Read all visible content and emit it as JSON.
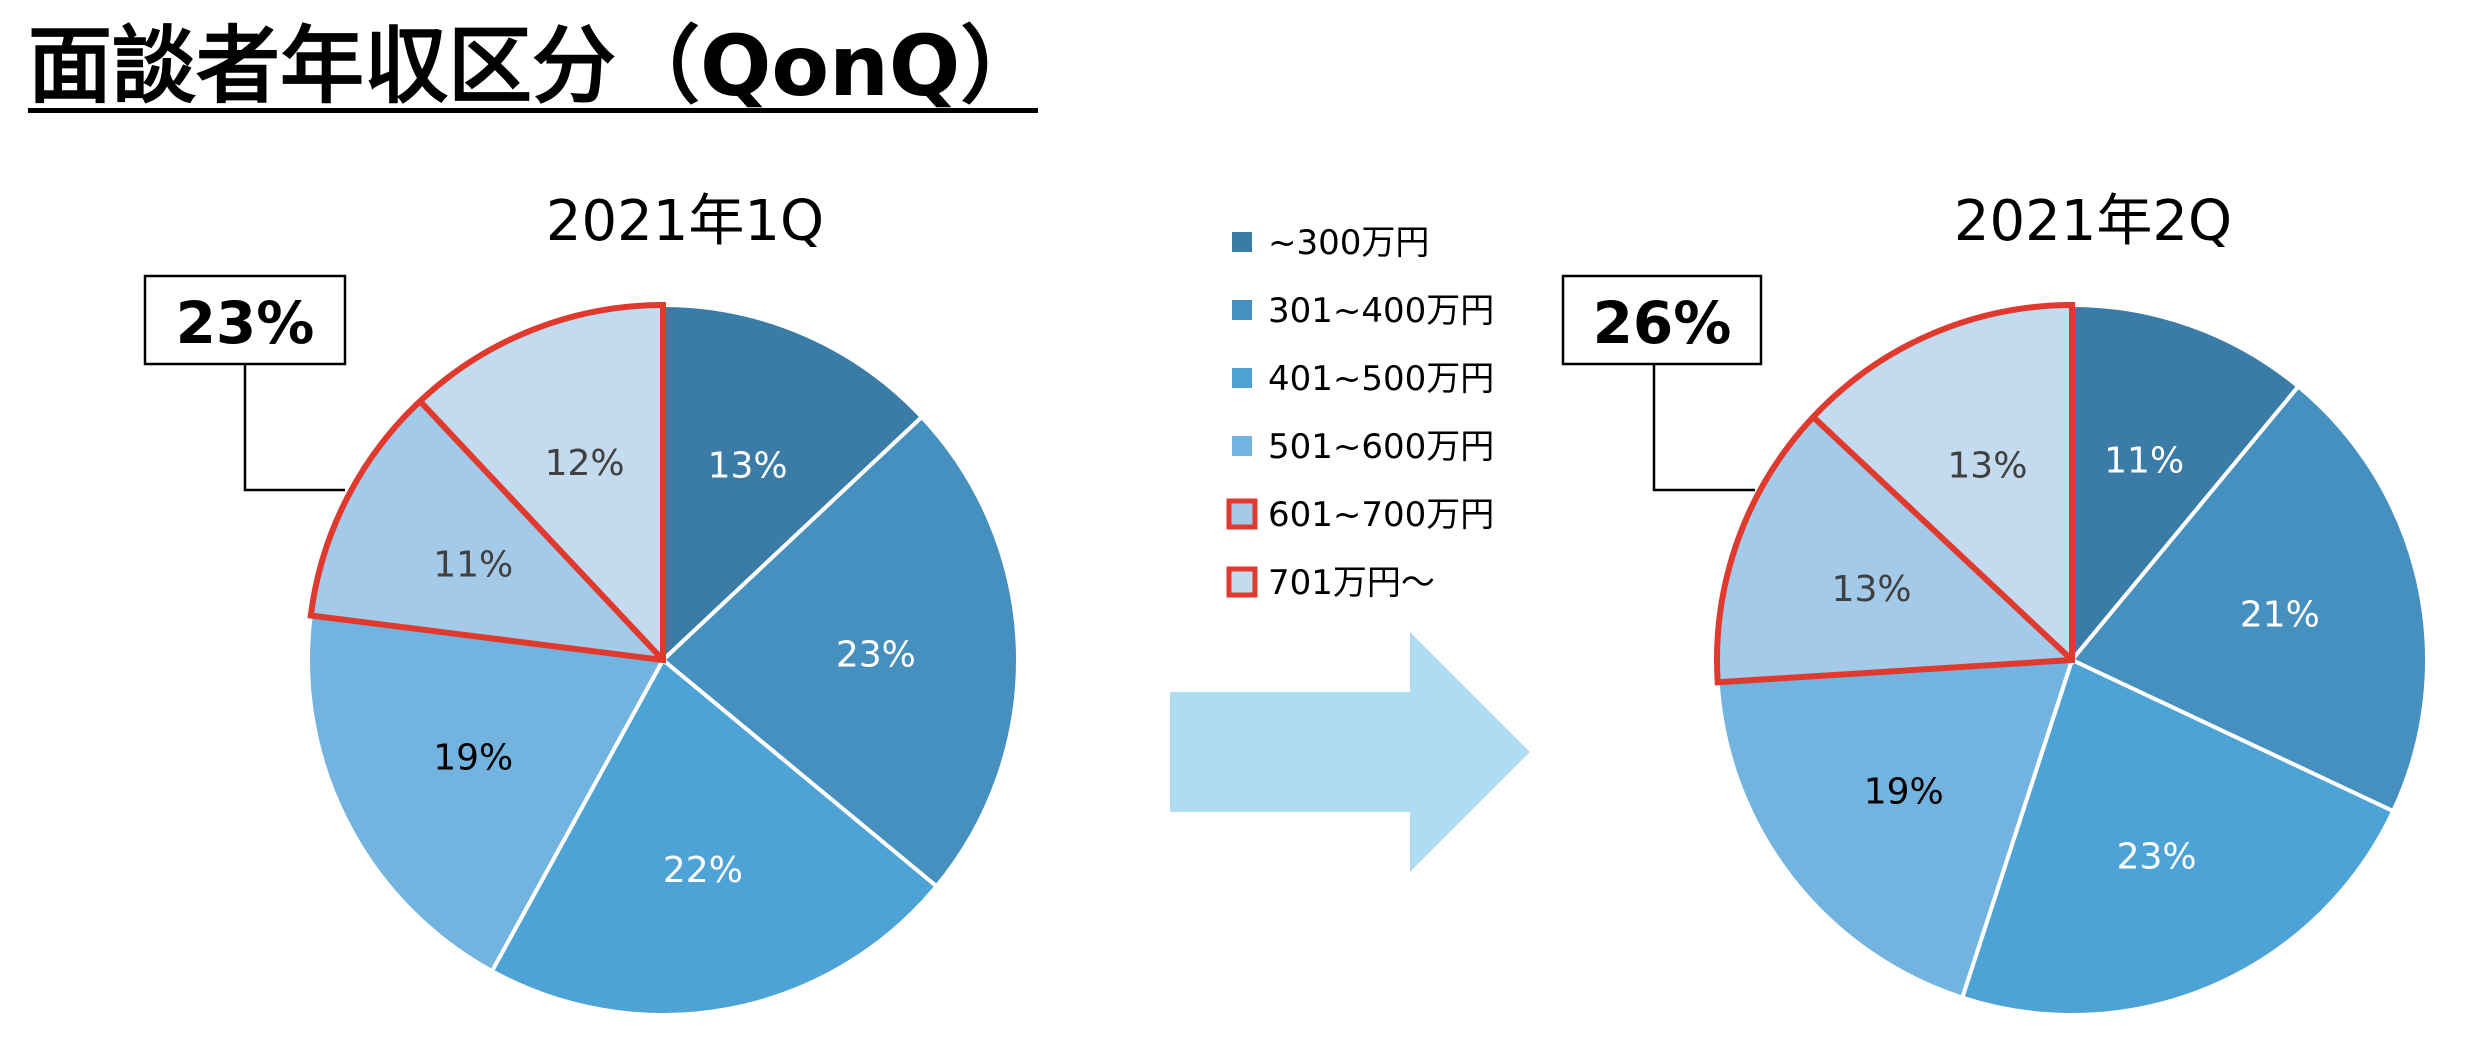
{
  "page": {
    "title": "面談者年収区分（QonQ）"
  },
  "legend": {
    "items": [
      {
        "label": "~300万円",
        "color": "#3A7CA5",
        "highlighted": false
      },
      {
        "label": "301~400万円",
        "color": "#4590BF",
        "highlighted": false
      },
      {
        "label": "401~500万円",
        "color": "#4DA3D6",
        "highlighted": false
      },
      {
        "label": "501~600万円",
        "color": "#72B3DF",
        "highlighted": false
      },
      {
        "label": "601~700万円",
        "color": "#A4CAE9",
        "highlighted": true
      },
      {
        "label": "701万円～",
        "color": "#C4DAEE",
        "highlighted": true
      }
    ]
  },
  "callouts": [
    {
      "text": "23%"
    },
    {
      "text": "26%"
    }
  ],
  "chart_data": [
    {
      "type": "pie",
      "title": "2021年1Q",
      "categories": [
        "~300万円",
        "301~400万円",
        "401~500万円",
        "501~600万円",
        "601~700万円",
        "701万円～"
      ],
      "values": [
        13,
        23,
        22,
        19,
        11,
        12
      ],
      "labels": [
        "13%",
        "23%",
        "22%",
        "19%",
        "11%",
        "12%"
      ],
      "highlighted_total": "23%"
    },
    {
      "type": "pie",
      "title": "2021年2Q",
      "categories": [
        "~300万円",
        "301~400万円",
        "401~500万円",
        "501~600万円",
        "601~700万円",
        "701万円～"
      ],
      "values": [
        11,
        21,
        23,
        19,
        13,
        13
      ],
      "labels": [
        "11%",
        "21%",
        "23%",
        "19%",
        "13%",
        "13%"
      ],
      "highlighted_total": "26%"
    }
  ],
  "colors": {
    "highlight_border": "#E03A2E",
    "arrow": "#B0DCF1",
    "label_light": "#FFFFFF",
    "label_dark": "#000000",
    "label_grey": "#404040"
  }
}
